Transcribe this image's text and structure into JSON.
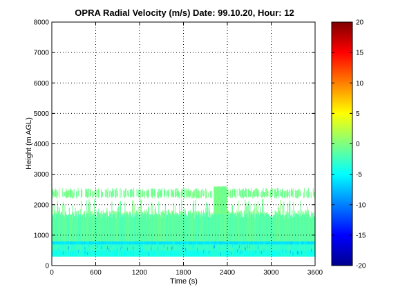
{
  "chart_data": {
    "type": "heatmap",
    "title": "OPRA Radial Velocity (m/s)  Date: 99.10.20, Hour: 12",
    "xlabel": "Time (s)",
    "ylabel": "Height (m AGL)",
    "xlim": [
      0,
      3600
    ],
    "ylim": [
      0,
      8000
    ],
    "x_ticks": [
      "0",
      "600",
      "1200",
      "1800",
      "2400",
      "3000",
      "3600"
    ],
    "y_ticks": [
      "0",
      "1000",
      "2000",
      "3000",
      "4000",
      "5000",
      "6000",
      "7000",
      "8000"
    ],
    "grid": true,
    "colorbar": {
      "colormap": "jet",
      "clim": [
        -20,
        20
      ],
      "ticks": [
        "-20",
        "-15",
        "-10",
        "-5",
        "0",
        "5",
        "10",
        "15",
        "20"
      ]
    },
    "data_summary": {
      "data_bottom_m": 300,
      "main_layer_top_m": 1700,
      "layer_top_range_m": [
        1500,
        2600
      ],
      "upper_band_m": [
        2200,
        2550
      ],
      "peak_top": {
        "x_s": 2300,
        "height_m": 2700
      },
      "layers": [
        {
          "from_m": 300,
          "to_m": 500,
          "velocity_ms": -4
        },
        {
          "from_m": 500,
          "to_m": 700,
          "velocity_ms": -3
        },
        {
          "from_m": 700,
          "to_m": 800,
          "velocity_ms": -6
        },
        {
          "from_m": 800,
          "to_m": 1700,
          "velocity_ms": -1.5
        },
        {
          "from_m": 1700,
          "to_m": 2600,
          "velocity_ms": -0.5
        }
      ]
    }
  }
}
